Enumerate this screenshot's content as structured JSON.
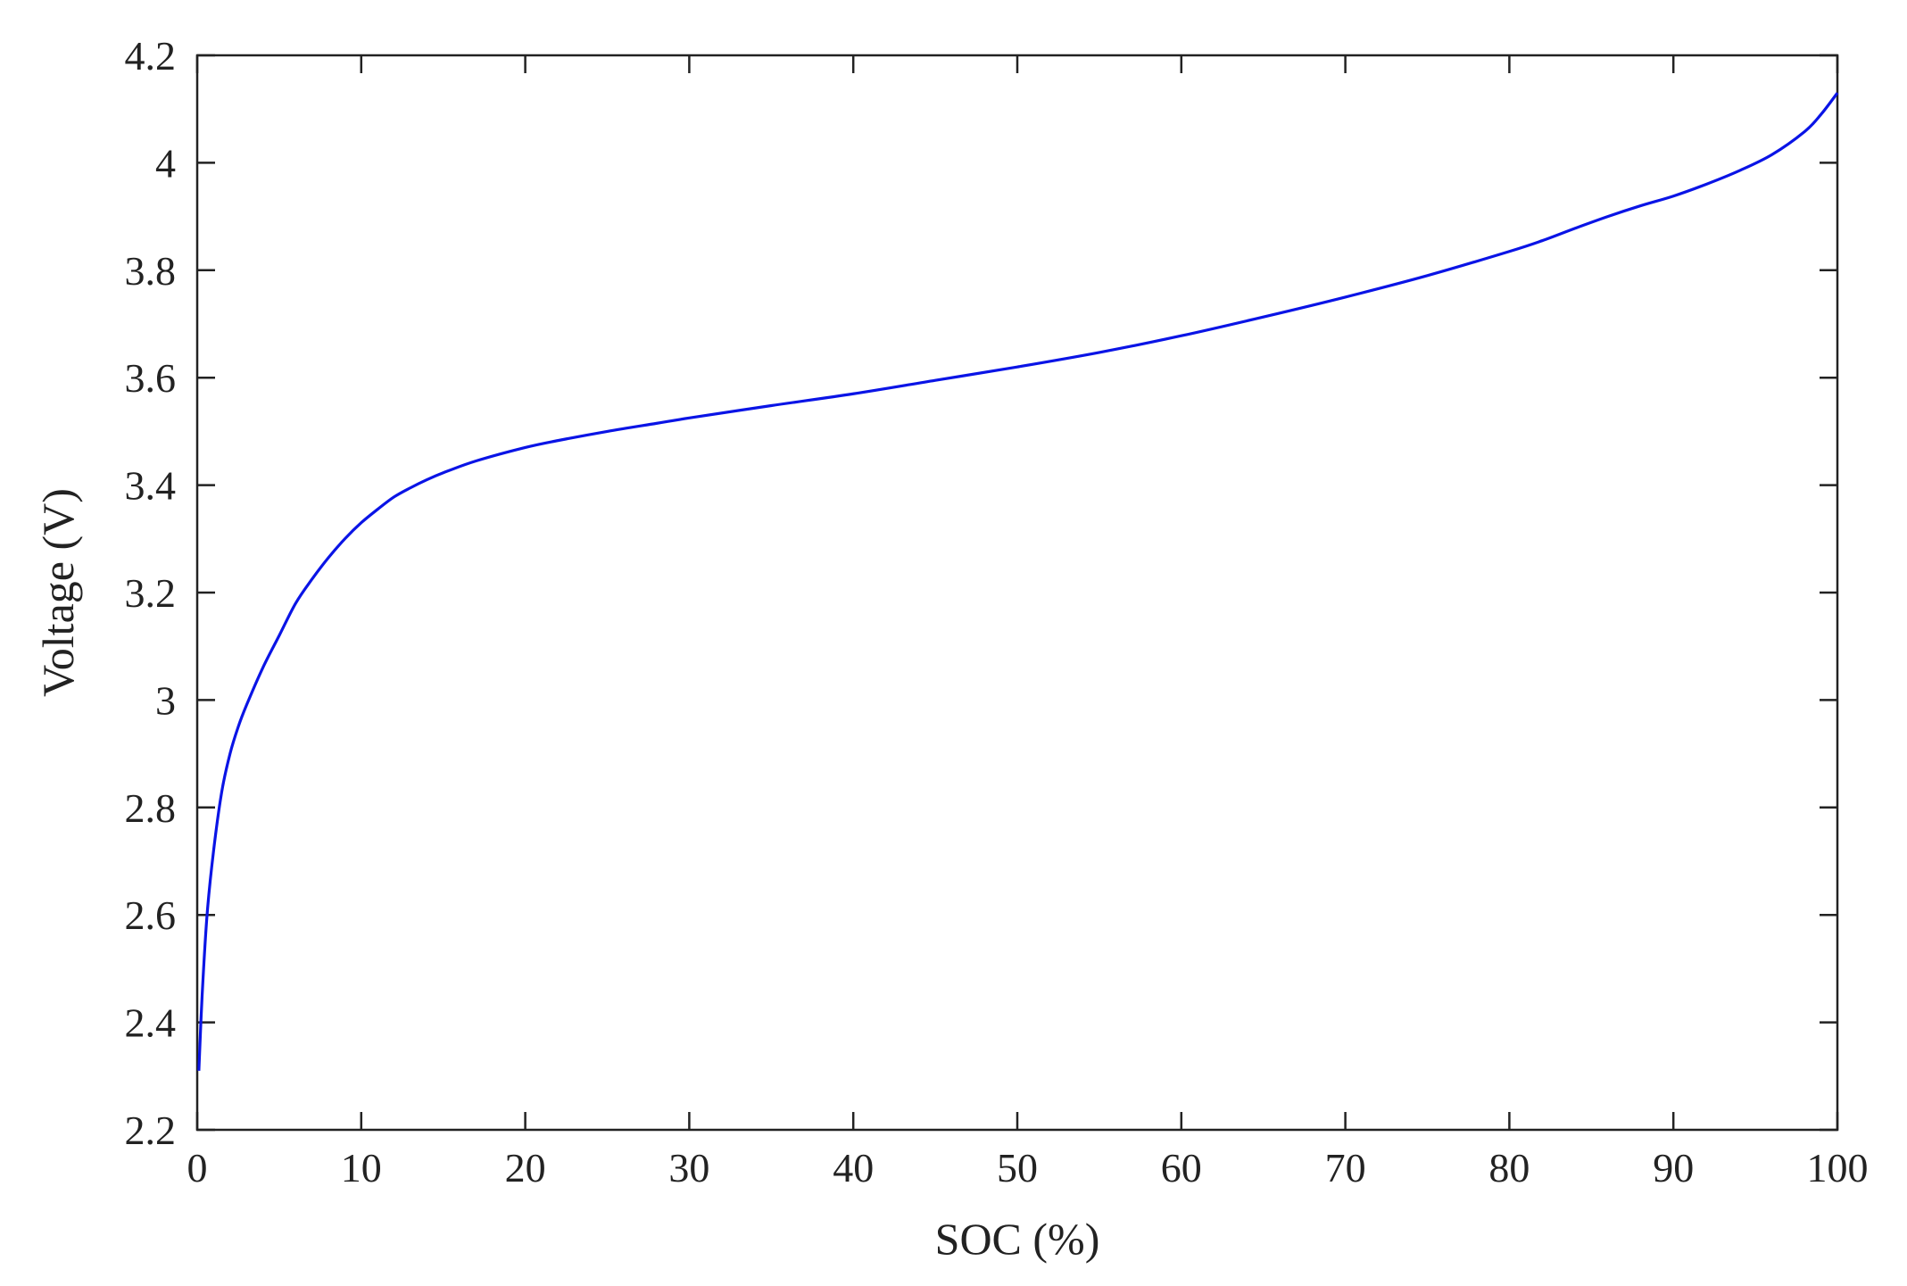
{
  "chart_data": {
    "type": "line",
    "title": "",
    "xlabel": "SOC (%)",
    "ylabel": "Voltage (V)",
    "xlim": [
      0,
      100
    ],
    "ylim": [
      2.2,
      4.2
    ],
    "xticks": [
      0,
      10,
      20,
      30,
      40,
      50,
      60,
      70,
      80,
      90,
      100
    ],
    "yticks": [
      2.2,
      2.4,
      2.6,
      2.8,
      3,
      3.2,
      3.4,
      3.6,
      3.8,
      4,
      4.2
    ],
    "xtick_labels": [
      "0",
      "10",
      "20",
      "30",
      "40",
      "50",
      "60",
      "70",
      "80",
      "90",
      "100"
    ],
    "ytick_labels": [
      "2.2",
      "2.4",
      "2.6",
      "2.8",
      "3",
      "3.2",
      "3.4",
      "3.6",
      "3.8",
      "4",
      "4.2"
    ],
    "grid": false,
    "legend": "none",
    "colors": {
      "line": "#0a14e6",
      "axes": "#222222"
    },
    "series": [
      {
        "x": [
          0.1,
          0.3,
          0.6,
          1.0,
          1.5,
          2.0,
          2.5,
          3.0,
          4.0,
          5.0,
          6.0,
          7.0,
          8.0,
          9.0,
          10,
          11,
          12,
          13,
          14,
          15,
          17,
          20,
          22,
          25,
          28,
          30,
          35,
          40,
          45,
          50,
          55,
          60,
          65,
          70,
          75,
          80,
          82,
          84,
          86,
          88,
          90,
          92,
          94,
          96,
          98,
          99,
          100
        ],
        "y": [
          2.31,
          2.45,
          2.6,
          2.72,
          2.83,
          2.9,
          2.95,
          2.99,
          3.06,
          3.12,
          3.18,
          3.225,
          3.265,
          3.3,
          3.33,
          3.355,
          3.378,
          3.395,
          3.41,
          3.423,
          3.445,
          3.47,
          3.483,
          3.5,
          3.515,
          3.525,
          3.548,
          3.57,
          3.595,
          3.62,
          3.647,
          3.678,
          3.713,
          3.75,
          3.79,
          3.835,
          3.855,
          3.878,
          3.9,
          3.92,
          3.938,
          3.96,
          3.985,
          4.015,
          4.058,
          4.09,
          4.13
        ]
      }
    ]
  }
}
